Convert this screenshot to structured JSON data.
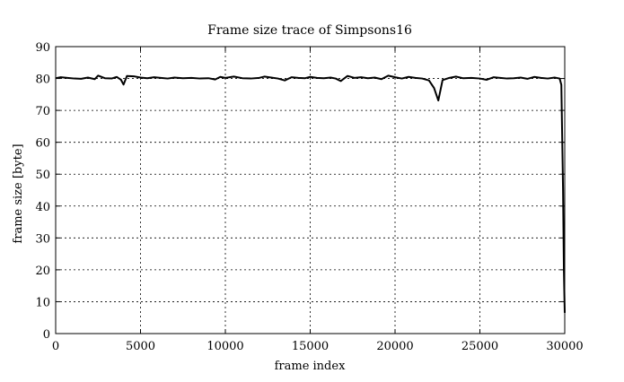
{
  "chart_data": {
    "type": "line",
    "title": "Frame size trace of Simpsons16",
    "xlabel": "frame index",
    "ylabel": "frame size [byte]",
    "xlim": [
      0,
      30000
    ],
    "ylim": [
      0,
      90
    ],
    "xticks": [
      0,
      5000,
      10000,
      15000,
      20000,
      25000,
      30000
    ],
    "yticks": [
      0,
      10,
      20,
      30,
      40,
      50,
      60,
      70,
      80,
      90
    ],
    "grid": true,
    "legend": "none",
    "line_color": "#000000",
    "series": [
      {
        "x": [
          0,
          300,
          700,
          1100,
          1500,
          1900,
          2300,
          2500,
          2900,
          3300,
          3600,
          3850,
          4000,
          4200,
          4600,
          5000,
          5400,
          5800,
          6200,
          6600,
          7000,
          7500,
          8000,
          8500,
          9000,
          9400,
          9700,
          10000,
          10500,
          11000,
          11500,
          12000,
          12300,
          12700,
          13100,
          13500,
          13900,
          14300,
          14700,
          15000,
          15400,
          15800,
          16200,
          16500,
          16800,
          17200,
          17600,
          18000,
          18400,
          18800,
          19200,
          19600,
          20000,
          20400,
          20800,
          21200,
          21600,
          22000,
          22300,
          22550,
          22800,
          23200,
          23600,
          24000,
          24500,
          25000,
          25400,
          25800,
          26200,
          26600,
          27000,
          27400,
          27800,
          28200,
          28600,
          29000,
          29400,
          29600,
          29700,
          29800,
          29900,
          29950,
          30000
        ],
        "y": [
          80.1,
          80.4,
          80.2,
          80.0,
          79.9,
          80.3,
          79.8,
          80.9,
          80.1,
          80.0,
          80.5,
          79.6,
          78.1,
          80.8,
          80.7,
          80.3,
          80.1,
          80.4,
          80.2,
          80.0,
          80.3,
          80.1,
          80.2,
          80.0,
          80.1,
          79.7,
          80.5,
          80.2,
          80.6,
          80.1,
          80.0,
          80.2,
          80.6,
          80.3,
          80.0,
          79.4,
          80.4,
          80.2,
          80.1,
          80.5,
          80.2,
          80.1,
          80.3,
          80.0,
          79.2,
          80.8,
          80.2,
          80.4,
          80.1,
          80.3,
          79.8,
          80.9,
          80.4,
          80.0,
          80.5,
          80.2,
          80.0,
          79.4,
          77.0,
          73.1,
          79.5,
          80.2,
          80.6,
          80.1,
          80.2,
          80.0,
          79.6,
          80.4,
          80.2,
          80.0,
          80.1,
          80.3,
          79.9,
          80.5,
          80.2,
          80.0,
          80.3,
          80.1,
          80.0,
          78.0,
          45.0,
          20.0,
          6.5
        ]
      }
    ]
  }
}
